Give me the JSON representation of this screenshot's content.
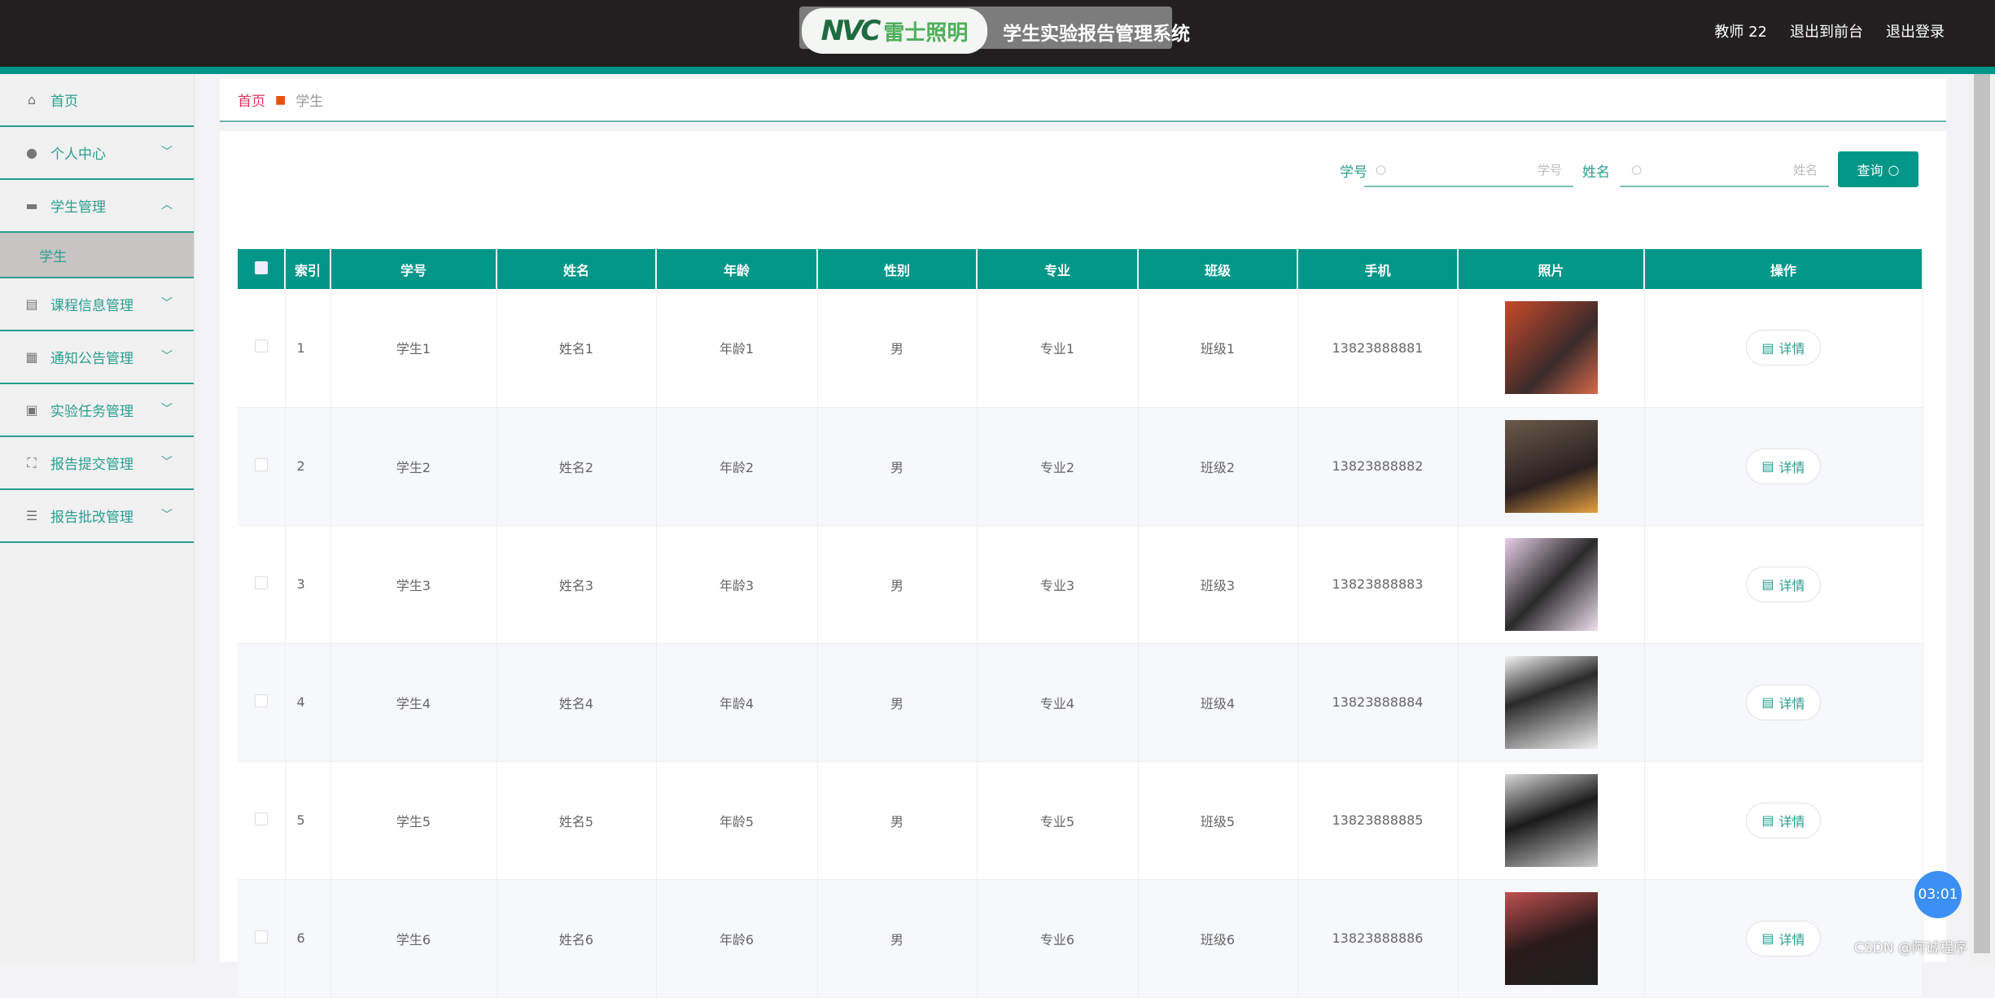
{
  "header": {
    "logo_text": "雷士照明",
    "title": "学生实验报告管理系统",
    "user": "教师 22",
    "to_front": "退出到前台",
    "logout": "退出登录"
  },
  "sidebar": {
    "items": [
      {
        "label": "首页",
        "icon": "home-icon"
      },
      {
        "label": "个人中心",
        "icon": "user-icon"
      },
      {
        "label": "学生管理",
        "icon": "monitor-icon",
        "expanded": true,
        "children": [
          {
            "label": "学生",
            "active": true
          }
        ]
      },
      {
        "label": "课程信息管理",
        "icon": "clipboard-icon"
      },
      {
        "label": "通知公告管理",
        "icon": "grid-icon"
      },
      {
        "label": "实验任务管理",
        "icon": "task-icon"
      },
      {
        "label": "报告提交管理",
        "icon": "fullscreen-icon"
      },
      {
        "label": "报告批改管理",
        "icon": "list-icon"
      }
    ]
  },
  "breadcrumb": {
    "home": "首页",
    "current": "学生"
  },
  "search": {
    "fields": [
      {
        "label": "学号",
        "placeholder": "学号"
      },
      {
        "label": "姓名",
        "placeholder": "姓名"
      }
    ],
    "button": "查询"
  },
  "table": {
    "columns": [
      "索引",
      "学号",
      "姓名",
      "年龄",
      "性别",
      "专业",
      "班级",
      "手机",
      "照片",
      "操作"
    ],
    "rows": [
      {
        "idx": "1",
        "no": "学生1",
        "name": "姓名1",
        "age": "年龄1",
        "sex": "男",
        "major": "专业1",
        "cls": "班级1",
        "phone": "13823888881"
      },
      {
        "idx": "2",
        "no": "学生2",
        "name": "姓名2",
        "age": "年龄2",
        "sex": "男",
        "major": "专业2",
        "cls": "班级2",
        "phone": "13823888882"
      },
      {
        "idx": "3",
        "no": "学生3",
        "name": "姓名3",
        "age": "年龄3",
        "sex": "男",
        "major": "专业3",
        "cls": "班级3",
        "phone": "13823888883"
      },
      {
        "idx": "4",
        "no": "学生4",
        "name": "姓名4",
        "age": "年龄4",
        "sex": "男",
        "major": "专业4",
        "cls": "班级4",
        "phone": "13823888884"
      },
      {
        "idx": "5",
        "no": "学生5",
        "name": "姓名5",
        "age": "年龄5",
        "sex": "男",
        "major": "专业5",
        "cls": "班级5",
        "phone": "13823888885"
      },
      {
        "idx": "6",
        "no": "学生6",
        "name": "姓名6",
        "age": "年龄6",
        "sex": "男",
        "major": "专业6",
        "cls": "班级6",
        "phone": "13823888886"
      }
    ],
    "detail_label": "详情"
  },
  "overlay": {
    "timer": "03:01",
    "watermark": "CSDN @阿诚程序"
  },
  "colors": {
    "accent": "#009688",
    "header": "#221f21",
    "breadcrumb_home": "#e0345a"
  }
}
